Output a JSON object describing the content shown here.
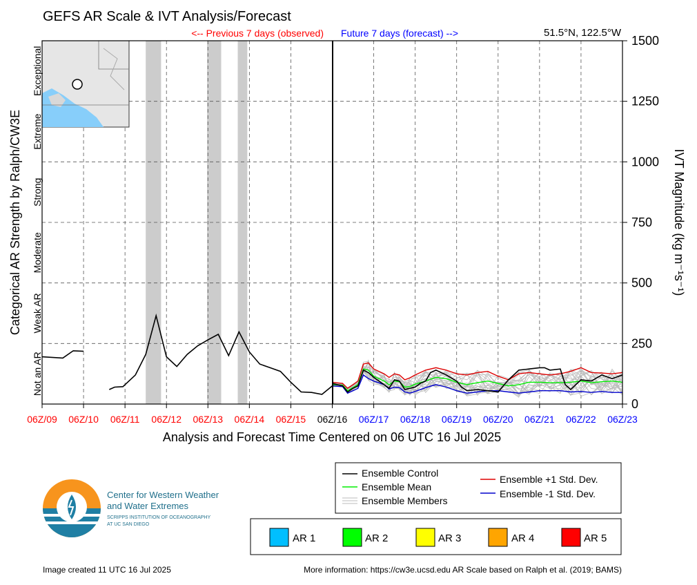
{
  "title": "GEFS AR Scale & IVT Analysis/Forecast",
  "location": "51.5°N, 122.5°W",
  "previous_label": "<-- Previous 7 days (observed)",
  "future_label": "Future 7 days (forecast) -->",
  "left_axis_label": "Categorical AR Strength by Ralph/CW3E",
  "right_axis_label": "IVT Magnitude (kg m⁻¹s⁻¹)",
  "x_axis_label": "Analysis and Forecast Time Centered on 06 UTC 16 Jul 2025",
  "categories": [
    "Not an AR",
    "Weak AR",
    "Moderate",
    "Strong",
    "Extreme",
    "Exceptional"
  ],
  "legend": {
    "control": "Ensemble Control",
    "mean": "Ensemble Mean",
    "members": "Ensemble Members",
    "plus_sd": "Ensemble +1 Std. Dev.",
    "minus_sd": "Ensemble -1 Std. Dev."
  },
  "ar_legend": [
    {
      "label": "AR 1",
      "color": "#00bfff"
    },
    {
      "label": "AR 2",
      "color": "#00ff00"
    },
    {
      "label": "AR 3",
      "color": "#ffff00"
    },
    {
      "label": "AR 4",
      "color": "#ffa500"
    },
    {
      "label": "AR 5",
      "color": "#ff0000"
    }
  ],
  "logo": {
    "line1": "Center for Western Weather",
    "line2": "and Water Extremes",
    "line3": "SCRIPPS INSTITUTION OF OCEANOGRAPHY",
    "line4": "AT UC SAN DIEGO"
  },
  "footer_left": "Image created 11 UTC 16 Jul 2025",
  "footer_right": "More information: https://cw3e.ucsd.edu AR Scale based on Ralph et al. (2019; BAMS)",
  "colors": {
    "observed": "#ff0000",
    "forecast": "#0000ff",
    "control": "#000000",
    "mean": "#00ee00",
    "plus_sd": "#dd0000",
    "minus_sd": "#0000cc",
    "members": "#bbbbbb"
  },
  "chart_data": {
    "type": "line",
    "xlabel": "Analysis and Forecast Time Centered on 06 UTC 16 Jul 2025",
    "ylabel": "IVT Magnitude (kg m⁻¹s⁻¹)",
    "ylim": [
      0,
      1500
    ],
    "xlim": [
      "06Z/09",
      "06Z/23"
    ],
    "x_ticks": [
      {
        "label": "06Z/09",
        "color": "red"
      },
      {
        "label": "06Z/10",
        "color": "red"
      },
      {
        "label": "06Z/11",
        "color": "red"
      },
      {
        "label": "06Z/12",
        "color": "red"
      },
      {
        "label": "06Z/13",
        "color": "red"
      },
      {
        "label": "06Z/14",
        "color": "red"
      },
      {
        "label": "06Z/15",
        "color": "red"
      },
      {
        "label": "06Z/16",
        "color": "black"
      },
      {
        "label": "06Z/17",
        "color": "blue"
      },
      {
        "label": "06Z/18",
        "color": "blue"
      },
      {
        "label": "06Z/19",
        "color": "blue"
      },
      {
        "label": "06Z/20",
        "color": "blue"
      },
      {
        "label": "06Z/21",
        "color": "blue"
      },
      {
        "label": "06Z/22",
        "color": "blue"
      },
      {
        "label": "06Z/23",
        "color": "blue"
      }
    ],
    "y_ticks": [
      0,
      250,
      500,
      750,
      1000,
      1250,
      1500
    ],
    "grid": true,
    "ar_periods_days": [
      [
        2.5,
        2.87
      ],
      [
        3.98,
        4.32
      ],
      [
        4.72,
        4.95
      ]
    ],
    "observed_segments": [
      [
        [
          0,
          195
        ],
        [
          0.5,
          190
        ],
        [
          0.75,
          220
        ],
        [
          1.0,
          218
        ]
      ],
      [
        [
          1.62,
          60
        ],
        [
          1.75,
          70
        ],
        [
          1.95,
          72
        ],
        [
          2.25,
          120
        ],
        [
          2.5,
          205
        ],
        [
          2.75,
          365
        ],
        [
          3.0,
          195
        ],
        [
          3.25,
          155
        ],
        [
          3.5,
          205
        ],
        [
          3.75,
          240
        ],
        [
          4.0,
          265
        ],
        [
          4.25,
          288
        ],
        [
          4.5,
          200
        ],
        [
          4.75,
          298
        ],
        [
          5.0,
          215
        ],
        [
          5.25,
          165
        ],
        [
          5.5,
          150
        ],
        [
          5.75,
          135
        ],
        [
          6.0,
          90
        ],
        [
          6.25,
          50
        ],
        [
          6.5,
          48
        ],
        [
          6.75,
          40
        ],
        [
          7.0,
          75
        ]
      ]
    ],
    "series": [
      {
        "name": "Ensemble Control",
        "points": [
          [
            7.0,
            85
          ],
          [
            7.25,
            75
          ],
          [
            7.37,
            50
          ],
          [
            7.5,
            65
          ],
          [
            7.62,
            75
          ],
          [
            7.75,
            140
          ],
          [
            7.87,
            130
          ],
          [
            8.0,
            110
          ],
          [
            8.25,
            80
          ],
          [
            8.37,
            65
          ],
          [
            8.5,
            100
          ],
          [
            8.62,
            95
          ],
          [
            8.75,
            60
          ],
          [
            8.87,
            65
          ],
          [
            9.0,
            70
          ],
          [
            9.12,
            85
          ],
          [
            9.25,
            95
          ],
          [
            9.37,
            130
          ],
          [
            9.5,
            140
          ],
          [
            9.75,
            120
          ],
          [
            10.0,
            95
          ],
          [
            10.12,
            70
          ],
          [
            10.25,
            55
          ],
          [
            10.5,
            60
          ],
          [
            10.75,
            55
          ],
          [
            11.0,
            50
          ],
          [
            11.25,
            100
          ],
          [
            11.5,
            140
          ],
          [
            11.75,
            145
          ],
          [
            12.0,
            150
          ],
          [
            12.12,
            150
          ],
          [
            12.25,
            140
          ],
          [
            12.5,
            145
          ],
          [
            12.62,
            80
          ],
          [
            12.75,
            60
          ],
          [
            13.0,
            100
          ],
          [
            13.25,
            95
          ],
          [
            13.5,
            120
          ],
          [
            13.75,
            105
          ],
          [
            14.0,
            120
          ]
        ]
      },
      {
        "name": "Ensemble Mean",
        "points": [
          [
            7.0,
            80
          ],
          [
            7.25,
            78
          ],
          [
            7.37,
            55
          ],
          [
            7.5,
            68
          ],
          [
            7.62,
            80
          ],
          [
            7.75,
            145
          ],
          [
            7.87,
            140
          ],
          [
            8.0,
            115
          ],
          [
            8.25,
            95
          ],
          [
            8.37,
            80
          ],
          [
            8.5,
            95
          ],
          [
            8.62,
            92
          ],
          [
            8.75,
            70
          ],
          [
            8.87,
            72
          ],
          [
            9.0,
            82
          ],
          [
            9.25,
            95
          ],
          [
            9.5,
            110
          ],
          [
            9.75,
            105
          ],
          [
            10.0,
            90
          ],
          [
            10.25,
            80
          ],
          [
            10.5,
            88
          ],
          [
            10.75,
            95
          ],
          [
            11.0,
            85
          ],
          [
            11.25,
            75
          ],
          [
            11.5,
            80
          ],
          [
            11.75,
            90
          ],
          [
            12.0,
            90
          ],
          [
            12.25,
            88
          ],
          [
            12.5,
            88
          ],
          [
            12.75,
            90
          ],
          [
            13.0,
            95
          ],
          [
            13.25,
            88
          ],
          [
            13.5,
            92
          ],
          [
            13.75,
            95
          ],
          [
            14.0,
            90
          ]
        ]
      },
      {
        "name": "Ensemble +1 Std. Dev.",
        "points": [
          [
            7.0,
            90
          ],
          [
            7.25,
            85
          ],
          [
            7.37,
            65
          ],
          [
            7.5,
            80
          ],
          [
            7.62,
            95
          ],
          [
            7.75,
            165
          ],
          [
            7.87,
            170
          ],
          [
            8.0,
            145
          ],
          [
            8.25,
            125
          ],
          [
            8.37,
            110
          ],
          [
            8.5,
            125
          ],
          [
            8.62,
            120
          ],
          [
            8.75,
            100
          ],
          [
            8.87,
            108
          ],
          [
            9.0,
            120
          ],
          [
            9.25,
            140
          ],
          [
            9.5,
            150
          ],
          [
            9.75,
            140
          ],
          [
            10.0,
            125
          ],
          [
            10.25,
            120
          ],
          [
            10.5,
            130
          ],
          [
            10.75,
            135
          ],
          [
            11.0,
            115
          ],
          [
            11.25,
            100
          ],
          [
            11.5,
            125
          ],
          [
            11.75,
            130
          ],
          [
            12.0,
            125
          ],
          [
            12.25,
            120
          ],
          [
            12.5,
            125
          ],
          [
            12.75,
            135
          ],
          [
            13.0,
            150
          ],
          [
            13.25,
            130
          ],
          [
            13.5,
            128
          ],
          [
            13.75,
            125
          ],
          [
            14.0,
            130
          ]
        ]
      },
      {
        "name": "Ensemble -1 Std. Dev.",
        "points": [
          [
            7.0,
            75
          ],
          [
            7.25,
            72
          ],
          [
            7.37,
            45
          ],
          [
            7.5,
            55
          ],
          [
            7.62,
            65
          ],
          [
            7.75,
            120
          ],
          [
            7.87,
            105
          ],
          [
            8.0,
            95
          ],
          [
            8.25,
            80
          ],
          [
            8.37,
            62
          ],
          [
            8.5,
            70
          ],
          [
            8.62,
            68
          ],
          [
            8.75,
            50
          ],
          [
            8.87,
            45
          ],
          [
            9.0,
            52
          ],
          [
            9.25,
            68
          ],
          [
            9.5,
            80
          ],
          [
            9.75,
            70
          ],
          [
            10.0,
            55
          ],
          [
            10.25,
            45
          ],
          [
            10.5,
            50
          ],
          [
            10.75,
            55
          ],
          [
            11.0,
            55
          ],
          [
            11.25,
            50
          ],
          [
            11.5,
            45
          ],
          [
            11.75,
            50
          ],
          [
            12.0,
            55
          ],
          [
            12.25,
            55
          ],
          [
            12.5,
            55
          ],
          [
            12.75,
            50
          ],
          [
            13.0,
            52
          ],
          [
            13.25,
            48
          ],
          [
            13.5,
            52
          ],
          [
            13.75,
            48
          ],
          [
            14.0,
            48
          ]
        ]
      }
    ]
  }
}
